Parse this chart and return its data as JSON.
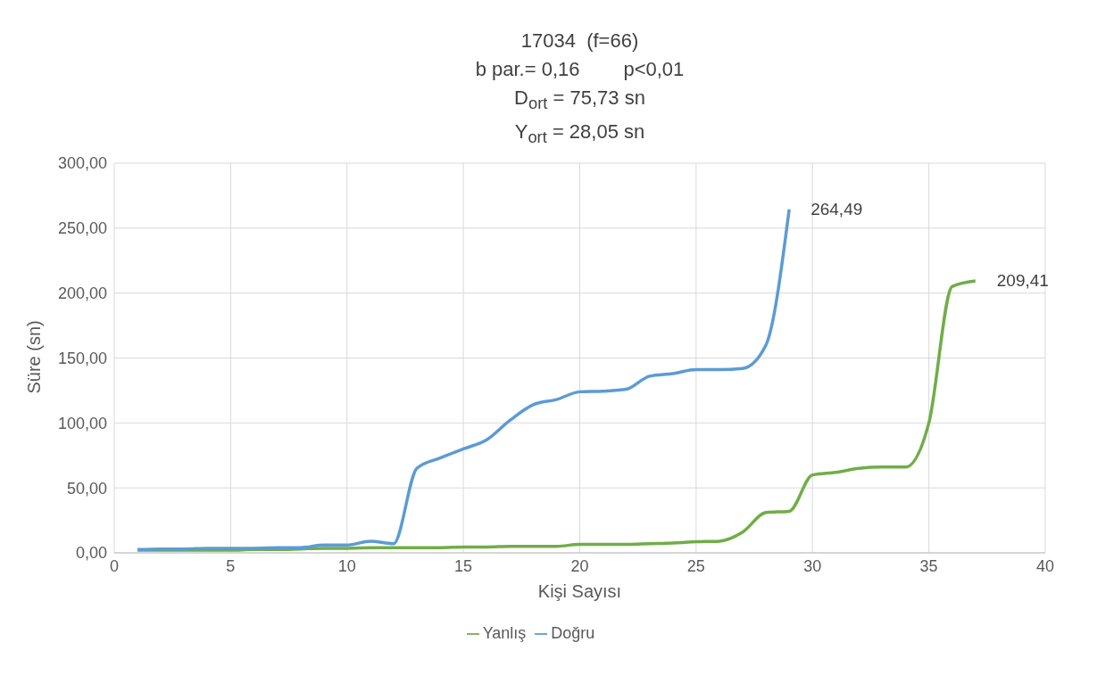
{
  "chart_data": {
    "type": "line",
    "title": "17034  (f=66)",
    "subtitle": [
      "b par.= 0,16        p<0,01",
      "D$_{ort}$ = 75,73 sn",
      "Y$_{ort}$ = 28,05 sn"
    ],
    "xlabel": "Kişi Sayısı",
    "ylabel": "Süre (sn)",
    "xlim": [
      0,
      40
    ],
    "xticks": [
      0,
      5,
      10,
      15,
      20,
      25,
      30,
      35,
      40
    ],
    "ylim": [
      0,
      300
    ],
    "yticks": [
      {
        "value": 0,
        "label": "0,00"
      },
      {
        "value": 50,
        "label": "50,00"
      },
      {
        "value": 100,
        "label": "100,00"
      },
      {
        "value": 150,
        "label": "150,00"
      },
      {
        "value": 200,
        "label": "200,00"
      },
      {
        "value": 250,
        "label": "250,00"
      },
      {
        "value": 300,
        "label": "300,00"
      }
    ],
    "grid": true,
    "legend": "bottom",
    "marker": "none",
    "line_style": "solid",
    "series": [
      {
        "name": "Yanlış",
        "color": "#70ad47",
        "x": [
          1,
          2,
          3,
          4,
          5,
          6,
          7,
          8,
          9,
          10,
          11,
          12,
          13,
          14,
          15,
          16,
          17,
          18,
          19,
          20,
          21,
          22,
          23,
          24,
          25,
          26,
          27,
          28,
          29,
          30,
          31,
          32,
          33,
          34,
          35,
          36,
          37
        ],
        "values": [
          2,
          2,
          2,
          2,
          2,
          2.5,
          2.5,
          3,
          3.5,
          3.5,
          4,
          4,
          4,
          4,
          4.5,
          4.5,
          5,
          5,
          5,
          6.5,
          6.5,
          6.5,
          7,
          7.5,
          8.5,
          9,
          16,
          31,
          32,
          60,
          62,
          65,
          66,
          66,
          100,
          205,
          209.41
        ],
        "value_labels": [
          null,
          null,
          null,
          null,
          null,
          null,
          null,
          null,
          null,
          null,
          null,
          null,
          null,
          null,
          null,
          null,
          null,
          null,
          null,
          null,
          null,
          null,
          null,
          null,
          null,
          null,
          null,
          null,
          null,
          null,
          null,
          null,
          null,
          null,
          null,
          null,
          "209,41"
        ]
      },
      {
        "name": "Doğru",
        "color": "#5b9bd5",
        "x": [
          1,
          2,
          3,
          4,
          5,
          6,
          7,
          8,
          9,
          10,
          11,
          12,
          13,
          14,
          15,
          16,
          17,
          18,
          19,
          20,
          21,
          22,
          23,
          24,
          25,
          26,
          27,
          28,
          29
        ],
        "values": [
          2.5,
          3,
          3,
          3.5,
          3.5,
          3.5,
          4,
          4,
          6,
          6,
          9,
          7,
          65,
          73,
          80,
          87,
          102,
          114,
          118,
          124,
          124.5,
          126,
          136,
          138,
          141,
          141,
          142,
          160,
          264.49
        ],
        "value_labels": [
          null,
          null,
          null,
          null,
          null,
          null,
          null,
          null,
          null,
          null,
          null,
          null,
          null,
          null,
          null,
          null,
          null,
          null,
          null,
          null,
          null,
          null,
          null,
          null,
          null,
          null,
          null,
          null,
          "264,49"
        ]
      }
    ]
  }
}
